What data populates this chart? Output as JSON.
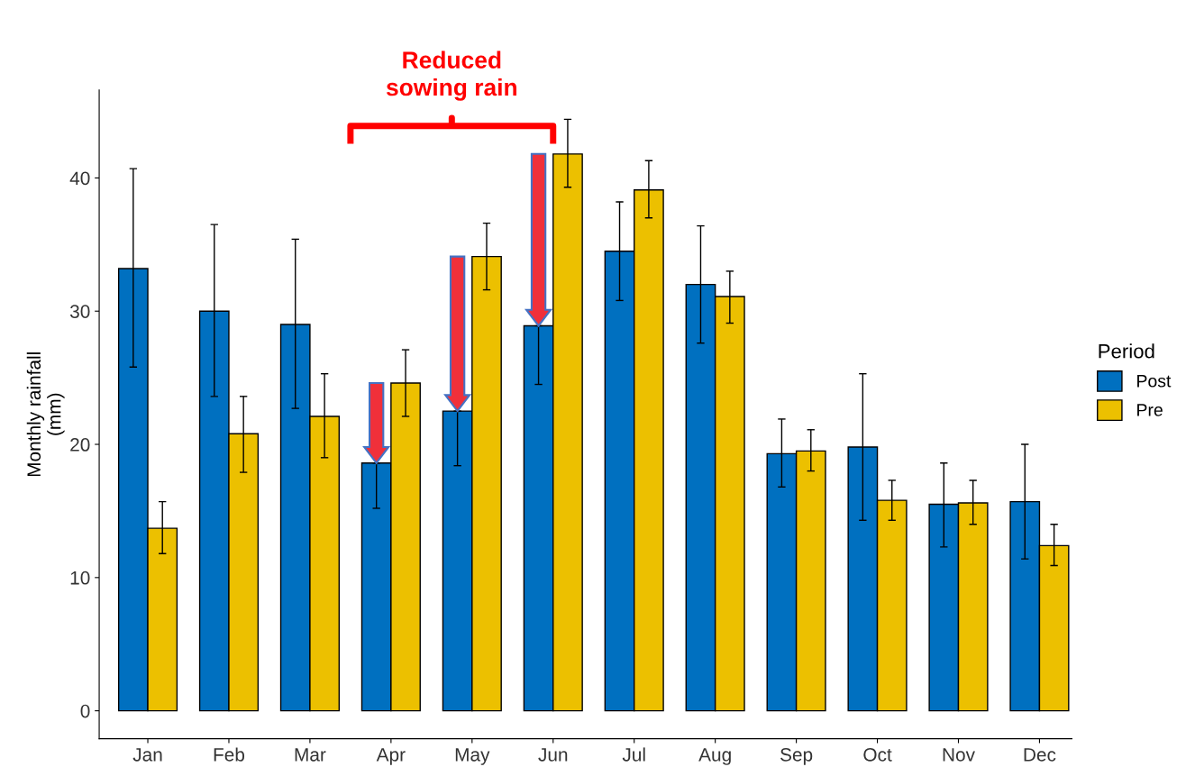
{
  "chart_data": {
    "type": "bar",
    "categories": [
      "Jan",
      "Feb",
      "Mar",
      "Apr",
      "May",
      "Jun",
      "Jul",
      "Aug",
      "Sep",
      "Oct",
      "Nov",
      "Dec"
    ],
    "series": [
      {
        "name": "Post",
        "color": "#0070c0",
        "values": [
          33.2,
          30.0,
          29.0,
          18.6,
          22.5,
          28.9,
          34.5,
          32.0,
          19.3,
          19.8,
          15.5,
          15.7
        ],
        "errors": [
          [
            25.8,
            40.7
          ],
          [
            23.6,
            36.5
          ],
          [
            22.7,
            35.4
          ],
          [
            15.2,
            18.6
          ],
          [
            18.4,
            22.5
          ],
          [
            24.5,
            28.9
          ],
          [
            30.8,
            38.2
          ],
          [
            27.6,
            36.4
          ],
          [
            16.8,
            21.9
          ],
          [
            14.3,
            25.3
          ],
          [
            12.3,
            18.6
          ],
          [
            11.4,
            20.0
          ]
        ]
      },
      {
        "name": "Pre",
        "color": "#ecc000",
        "values": [
          13.7,
          20.8,
          22.1,
          24.6,
          34.1,
          41.8,
          39.1,
          31.1,
          19.5,
          15.8,
          15.6,
          12.4
        ],
        "errors": [
          [
            11.8,
            15.7
          ],
          [
            17.9,
            23.6
          ],
          [
            19.0,
            25.3
          ],
          [
            22.1,
            27.1
          ],
          [
            31.6,
            36.6
          ],
          [
            39.3,
            44.4
          ],
          [
            37.0,
            41.3
          ],
          [
            29.1,
            33.0
          ],
          [
            18.0,
            21.1
          ],
          [
            14.3,
            17.3
          ],
          [
            14.0,
            17.3
          ],
          [
            10.9,
            14.0
          ]
        ]
      }
    ],
    "ylabel": "Monthly rainfall\n(mm)",
    "legend_title": "Period",
    "legend": "right",
    "ylim": [
      -2.1,
      46.6
    ],
    "yticks": [
      0,
      10,
      20,
      30,
      40
    ],
    "grid": false,
    "annotations": [
      "Reduced\nsowing rain"
    ]
  }
}
